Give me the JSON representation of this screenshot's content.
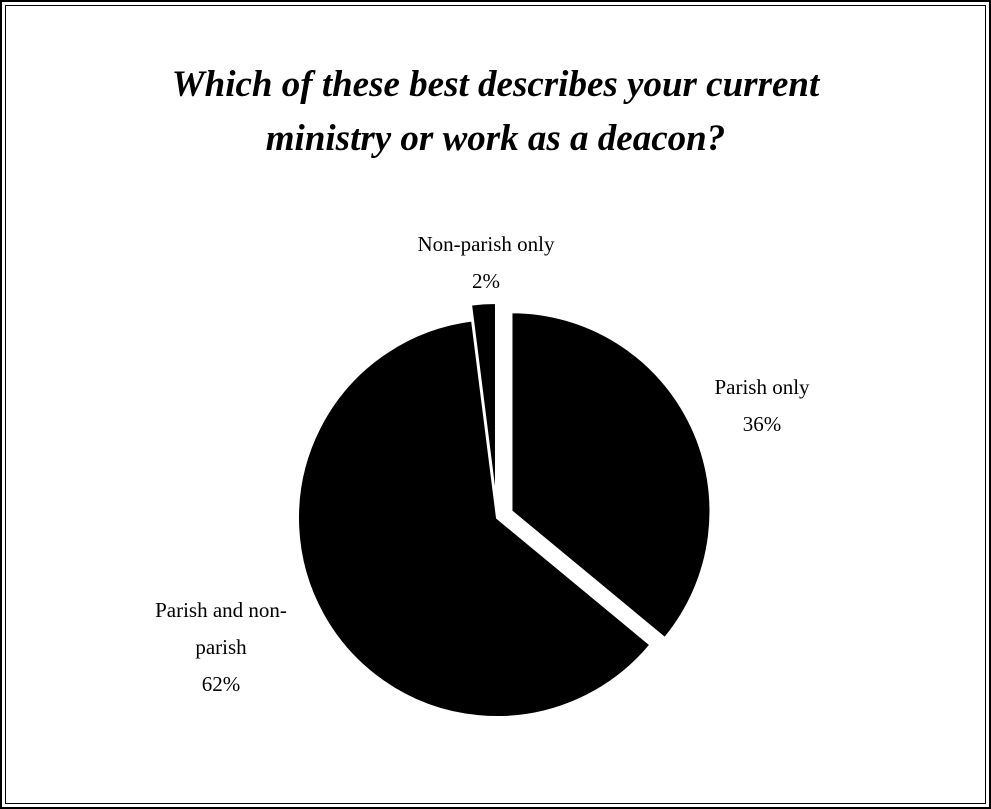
{
  "chart_data": {
    "type": "pie",
    "title": "Which of these best describes your current ministry or work as a deacon?",
    "title_lines": [
      "Which of these best describes your current",
      "ministry or work as a deacon?"
    ],
    "slices": [
      {
        "label": "Parish only",
        "label_lines": [
          "Parish only"
        ],
        "value": 36,
        "value_label": "36%",
        "color": "#000000",
        "exploded": true
      },
      {
        "label": "Parish and non-parish",
        "label_lines": [
          "Parish and non-",
          "parish"
        ],
        "value": 62,
        "value_label": "62%",
        "color": "#000000",
        "exploded": false
      },
      {
        "label": "Non-parish only",
        "label_lines": [
          "Non-parish only"
        ],
        "value": 2,
        "value_label": "2%",
        "color": "#000000",
        "exploded": true
      }
    ],
    "start_angle": "12 o'clock",
    "direction": "clockwise",
    "legend": "none",
    "data_labels": "category and percent, outside"
  }
}
